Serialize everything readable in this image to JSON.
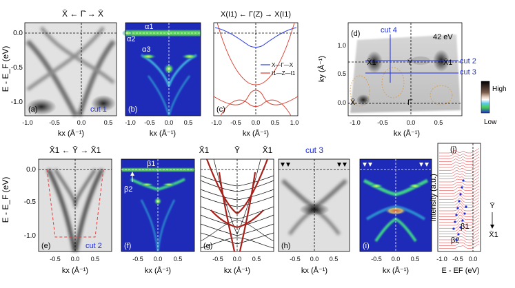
{
  "figure": {
    "top_row": {
      "ylabel": "E - E_F (eV)",
      "y_ticks": [
        "0.0",
        "-0.5",
        "-1.0"
      ],
      "a": {
        "letter": "(a)",
        "cut": "cut 1",
        "header": "X̄ ← Γ̄ → X̄",
        "xlabel": "kx (Å⁻¹)",
        "x_ticks": [
          "-1.0",
          "-0.5",
          "0.0",
          "0.5"
        ]
      },
      "b": {
        "letter": "(b)",
        "x_ticks": [
          "-1.0",
          "-0.5",
          "0.0",
          "0.5"
        ],
        "xlabel": "kx (Å⁻¹)",
        "bands": [
          "α1",
          "α2",
          "α3"
        ]
      },
      "c": {
        "letter": "(c)",
        "header": "X(I1) ← Γ(Z) → X(I1)",
        "x_ticks": [
          "-1.0",
          "-0.5",
          "0.0",
          "0.5",
          "1.0"
        ],
        "xlabel": "kx (Å⁻¹)",
        "legend": [
          {
            "label": "X—Γ—X",
            "color": "#2b3fe0"
          },
          {
            "label": "I1—Z—I1",
            "color": "#d83a2a"
          }
        ]
      },
      "d": {
        "letter": "(d)",
        "energy": "42 eV",
        "cuts": [
          "cut 4",
          "cut 2",
          "cut 3"
        ],
        "points": [
          "X̄1",
          "Ȳ",
          "X̄1",
          "X̄",
          "Γ̄"
        ],
        "ylabel": "ky (Å⁻¹)",
        "xlabel": "kx (Å⁻¹)",
        "x_ticks": [
          "-1.0",
          "-0.5",
          "0.0",
          "0.5"
        ],
        "y_ticks": [
          "1.0",
          "0.5",
          "0.0"
        ],
        "colorbar": {
          "high": "High",
          "low": "Low"
        }
      }
    },
    "bottom_row": {
      "ylabel": "E - E_F (eV)",
      "y_ticks": [
        "0.0",
        "-0.5",
        "-1.0"
      ],
      "k_ticks": [
        "-0.5",
        "0.0",
        "0.5"
      ],
      "xlabel": "kx (Å⁻¹)",
      "e": {
        "letter": "(e)",
        "cut": "cut 2",
        "header": "X̄1 ← Ȳ → X̄1"
      },
      "f": {
        "letter": "(f)",
        "bands": [
          "β1",
          "β2"
        ]
      },
      "g": {
        "letter": "(g)",
        "header": [
          "X̄1",
          "Ȳ",
          "X̄1"
        ]
      },
      "h": {
        "letter": "(h)",
        "cut": "cut 3"
      },
      "i": {
        "letter": "(i)"
      },
      "j": {
        "letter": "(j)",
        "ylabel": "Intensity (a.u.)",
        "xlabel": "E - EF (eV)",
        "x_ticks": [
          "-1.0",
          "-0.5",
          "0.0"
        ],
        "bands": [
          "β1",
          "β2"
        ],
        "path": [
          "Ȳ",
          "X̄1"
        ]
      }
    }
  }
}
